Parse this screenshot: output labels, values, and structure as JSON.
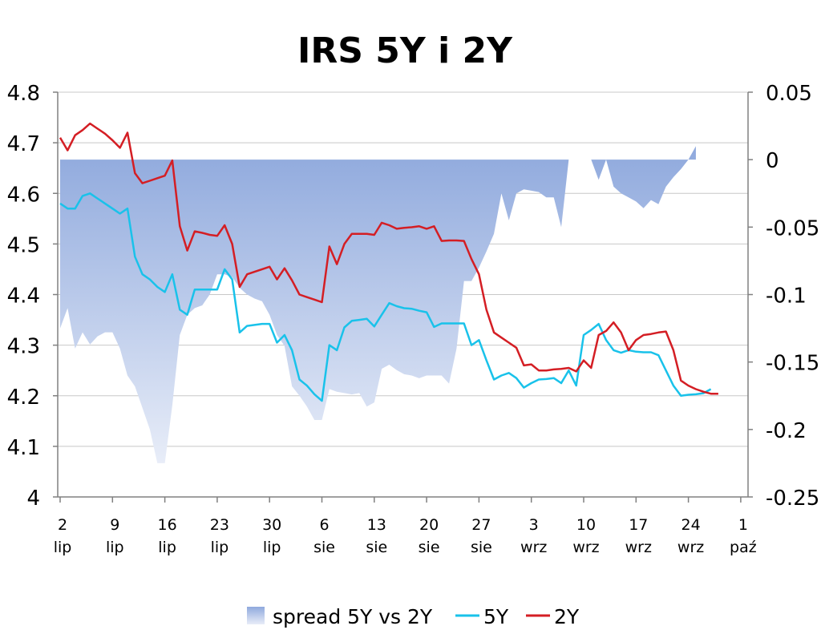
{
  "chart_data": {
    "type": "line",
    "title": "IRS 5Y i 2Y",
    "xlabel": "",
    "ylabel": "",
    "y_left": {
      "min": 4,
      "max": 4.8,
      "ticks": [
        "4",
        "4.1",
        "4.2",
        "4.3",
        "4.4",
        "4.5",
        "4.6",
        "4.7",
        "4.8"
      ]
    },
    "y_right": {
      "min": -0.25,
      "max": 0.05,
      "ticks": [
        "0.05",
        "0",
        "-0.05",
        "-0.1",
        "-0.15",
        "-0.2",
        "-0.25"
      ]
    },
    "x_ticks": [
      {
        "day": "2",
        "month": "lip"
      },
      {
        "day": "9",
        "month": "lip"
      },
      {
        "day": "16",
        "month": "lip"
      },
      {
        "day": "23",
        "month": "lip"
      },
      {
        "day": "30",
        "month": "lip"
      },
      {
        "day": "6",
        "month": "sie"
      },
      {
        "day": "13",
        "month": "sie"
      },
      {
        "day": "20",
        "month": "sie"
      },
      {
        "day": "27",
        "month": "sie"
      },
      {
        "day": "3",
        "month": "wrz"
      },
      {
        "day": "10",
        "month": "wrz"
      },
      {
        "day": "17",
        "month": "wrz"
      },
      {
        "day": "24",
        "month": "wrz"
      },
      {
        "day": "1",
        "month": "paź"
      }
    ],
    "grid": true,
    "legend_position": "bottom",
    "series": [
      {
        "name": "spread 5Y vs 2Y",
        "type": "area",
        "axis": "right",
        "color_top": "#8fa9dd",
        "color_bottom": "#e3e9f7",
        "values": [
          [
            0,
            -0.125
          ],
          [
            1,
            -0.11
          ],
          [
            2,
            -0.14
          ],
          [
            3,
            -0.128
          ],
          [
            4,
            -0.137
          ],
          [
            5,
            -0.131
          ],
          [
            6,
            -0.128
          ],
          [
            7,
            -0.128
          ],
          [
            8,
            -0.14
          ],
          [
            9,
            -0.16
          ],
          [
            10,
            -0.168
          ],
          [
            11,
            -0.184
          ],
          [
            12,
            -0.2
          ],
          [
            13,
            -0.225
          ],
          [
            14,
            -0.225
          ],
          [
            15,
            -0.182
          ],
          [
            16,
            -0.13
          ],
          [
            17,
            -0.115
          ],
          [
            18,
            -0.11
          ],
          [
            19,
            -0.108
          ],
          [
            20,
            -0.1
          ],
          [
            21,
            -0.085
          ],
          [
            22,
            -0.085
          ],
          [
            23,
            -0.087
          ],
          [
            24,
            -0.095
          ],
          [
            25,
            -0.1
          ],
          [
            26,
            -0.103
          ],
          [
            27,
            -0.105
          ],
          [
            28,
            -0.115
          ],
          [
            29,
            -0.13
          ],
          [
            30,
            -0.138
          ],
          [
            31,
            -0.168
          ],
          [
            32,
            -0.175
          ],
          [
            33,
            -0.183
          ],
          [
            34,
            -0.193
          ],
          [
            35,
            -0.193
          ],
          [
            36,
            -0.17
          ],
          [
            37,
            -0.172
          ],
          [
            38,
            -0.173
          ],
          [
            39,
            -0.174
          ],
          [
            40,
            -0.173
          ],
          [
            41,
            -0.183
          ],
          [
            42,
            -0.18
          ],
          [
            43,
            -0.155
          ],
          [
            44,
            -0.152
          ],
          [
            45,
            -0.156
          ],
          [
            46,
            -0.159
          ],
          [
            47,
            -0.16
          ],
          [
            48,
            -0.162
          ],
          [
            49,
            -0.16
          ],
          [
            50,
            -0.16
          ],
          [
            51,
            -0.16
          ],
          [
            52,
            -0.166
          ],
          [
            53,
            -0.14
          ],
          [
            54,
            -0.09
          ],
          [
            55,
            -0.09
          ],
          [
            56,
            -0.08
          ],
          [
            57,
            -0.068
          ],
          [
            58,
            -0.055
          ],
          [
            59,
            -0.025
          ],
          [
            60,
            -0.045
          ],
          [
            61,
            -0.025
          ],
          [
            62,
            -0.022
          ],
          [
            63,
            -0.023
          ],
          [
            64,
            -0.024
          ],
          [
            65,
            -0.028
          ],
          [
            66,
            -0.028
          ],
          [
            67,
            -0.05
          ],
          [
            68,
            0.0
          ],
          [
            69,
            0.0
          ],
          [
            70,
            0.0
          ],
          [
            71,
            0.0
          ],
          [
            72,
            -0.015
          ],
          [
            73,
            0.0
          ],
          [
            74,
            -0.02
          ],
          [
            75,
            -0.025
          ],
          [
            76,
            -0.028
          ],
          [
            77,
            -0.031
          ],
          [
            78,
            -0.036
          ],
          [
            79,
            -0.03
          ],
          [
            80,
            -0.033
          ],
          [
            81,
            -0.02
          ],
          [
            82,
            -0.013
          ],
          [
            83,
            -0.007
          ],
          [
            84,
            0.0
          ],
          [
            85,
            0.01
          ]
        ]
      },
      {
        "name": "5Y",
        "type": "line",
        "axis": "left",
        "color": "#19c2ea",
        "values": [
          [
            0,
            4.58
          ],
          [
            1,
            4.57
          ],
          [
            2,
            4.57
          ],
          [
            3,
            4.595
          ],
          [
            4,
            4.6
          ],
          [
            5,
            4.59
          ],
          [
            6,
            4.58
          ],
          [
            7,
            4.57
          ],
          [
            8,
            4.56
          ],
          [
            9,
            4.57
          ],
          [
            10,
            4.475
          ],
          [
            11,
            4.44
          ],
          [
            12,
            4.43
          ],
          [
            13,
            4.415
          ],
          [
            14,
            4.405
          ],
          [
            15,
            4.44
          ],
          [
            16,
            4.37
          ],
          [
            17,
            4.36
          ],
          [
            18,
            4.41
          ],
          [
            19,
            4.41
          ],
          [
            20,
            4.41
          ],
          [
            21,
            4.41
          ],
          [
            22,
            4.45
          ],
          [
            23,
            4.43
          ],
          [
            24,
            4.325
          ],
          [
            25,
            4.338
          ],
          [
            26,
            4.34
          ],
          [
            27,
            4.342
          ],
          [
            28,
            4.342
          ],
          [
            29,
            4.305
          ],
          [
            30,
            4.32
          ],
          [
            31,
            4.29
          ],
          [
            32,
            4.232
          ],
          [
            33,
            4.22
          ],
          [
            34,
            4.203
          ],
          [
            35,
            4.19
          ],
          [
            36,
            4.3
          ],
          [
            37,
            4.29
          ],
          [
            38,
            4.335
          ],
          [
            39,
            4.348
          ],
          [
            40,
            4.35
          ],
          [
            41,
            4.352
          ],
          [
            42,
            4.337
          ],
          [
            43,
            4.36
          ],
          [
            44,
            4.383
          ],
          [
            45,
            4.377
          ],
          [
            46,
            4.373
          ],
          [
            47,
            4.372
          ],
          [
            48,
            4.368
          ],
          [
            49,
            4.365
          ],
          [
            50,
            4.336
          ],
          [
            51,
            4.343
          ],
          [
            52,
            4.343
          ],
          [
            53,
            4.343
          ],
          [
            54,
            4.343
          ],
          [
            55,
            4.3
          ],
          [
            56,
            4.31
          ],
          [
            57,
            4.27
          ],
          [
            58,
            4.232
          ],
          [
            59,
            4.24
          ],
          [
            60,
            4.245
          ],
          [
            61,
            4.235
          ],
          [
            62,
            4.216
          ],
          [
            63,
            4.225
          ],
          [
            64,
            4.232
          ],
          [
            65,
            4.233
          ],
          [
            66,
            4.235
          ],
          [
            67,
            4.225
          ],
          [
            68,
            4.25
          ],
          [
            69,
            4.22
          ],
          [
            70,
            4.32
          ],
          [
            71,
            4.33
          ],
          [
            72,
            4.342
          ],
          [
            73,
            4.31
          ],
          [
            74,
            4.29
          ],
          [
            75,
            4.285
          ],
          [
            76,
            4.29
          ],
          [
            77,
            4.287
          ],
          [
            78,
            4.286
          ],
          [
            79,
            4.286
          ],
          [
            80,
            4.28
          ],
          [
            81,
            4.25
          ],
          [
            82,
            4.22
          ],
          [
            83,
            4.2
          ],
          [
            84,
            4.202
          ],
          [
            85,
            4.203
          ],
          [
            86,
            4.205
          ],
          [
            87,
            4.213
          ]
        ]
      },
      {
        "name": "2Y",
        "type": "line",
        "axis": "left",
        "color": "#d41e24",
        "values": [
          [
            0,
            4.71
          ],
          [
            1,
            4.685
          ],
          [
            2,
            4.715
          ],
          [
            3,
            4.725
          ],
          [
            4,
            4.738
          ],
          [
            5,
            4.728
          ],
          [
            6,
            4.718
          ],
          [
            7,
            4.705
          ],
          [
            8,
            4.69
          ],
          [
            9,
            4.72
          ],
          [
            10,
            4.64
          ],
          [
            11,
            4.62
          ],
          [
            12,
            4.625
          ],
          [
            13,
            4.63
          ],
          [
            14,
            4.635
          ],
          [
            15,
            4.665
          ],
          [
            16,
            4.535
          ],
          [
            17,
            4.487
          ],
          [
            18,
            4.525
          ],
          [
            19,
            4.522
          ],
          [
            20,
            4.518
          ],
          [
            21,
            4.516
          ],
          [
            22,
            4.537
          ],
          [
            23,
            4.5
          ],
          [
            24,
            4.415
          ],
          [
            25,
            4.44
          ],
          [
            26,
            4.445
          ],
          [
            27,
            4.45
          ],
          [
            28,
            4.455
          ],
          [
            29,
            4.43
          ],
          [
            30,
            4.452
          ],
          [
            31,
            4.428
          ],
          [
            32,
            4.4
          ],
          [
            33,
            4.395
          ],
          [
            34,
            4.39
          ],
          [
            35,
            4.385
          ],
          [
            36,
            4.495
          ],
          [
            37,
            4.46
          ],
          [
            38,
            4.5
          ],
          [
            39,
            4.52
          ],
          [
            40,
            4.52
          ],
          [
            41,
            4.52
          ],
          [
            42,
            4.518
          ],
          [
            43,
            4.542
          ],
          [
            44,
            4.537
          ],
          [
            45,
            4.53
          ],
          [
            46,
            4.532
          ],
          [
            47,
            4.533
          ],
          [
            48,
            4.535
          ],
          [
            49,
            4.53
          ],
          [
            50,
            4.535
          ],
          [
            51,
            4.506
          ],
          [
            52,
            4.507
          ],
          [
            53,
            4.507
          ],
          [
            54,
            4.506
          ],
          [
            55,
            4.47
          ],
          [
            56,
            4.44
          ],
          [
            57,
            4.37
          ],
          [
            58,
            4.325
          ],
          [
            59,
            4.315
          ],
          [
            60,
            4.305
          ],
          [
            61,
            4.295
          ],
          [
            62,
            4.26
          ],
          [
            63,
            4.262
          ],
          [
            64,
            4.25
          ],
          [
            65,
            4.25
          ],
          [
            66,
            4.252
          ],
          [
            67,
            4.253
          ],
          [
            68,
            4.255
          ],
          [
            69,
            4.248
          ],
          [
            70,
            4.27
          ],
          [
            71,
            4.255
          ],
          [
            72,
            4.32
          ],
          [
            73,
            4.328
          ],
          [
            74,
            4.345
          ],
          [
            75,
            4.325
          ],
          [
            76,
            4.29
          ],
          [
            77,
            4.31
          ],
          [
            78,
            4.32
          ],
          [
            79,
            4.322
          ],
          [
            80,
            4.325
          ],
          [
            81,
            4.327
          ],
          [
            82,
            4.29
          ],
          [
            83,
            4.23
          ],
          [
            84,
            4.22
          ],
          [
            85,
            4.213
          ],
          [
            86,
            4.208
          ],
          [
            87,
            4.204
          ],
          [
            88,
            4.204
          ]
        ]
      }
    ],
    "x_range": [
      0,
      88
    ],
    "x_tick_positions": [
      0,
      7,
      14,
      21,
      28,
      35,
      42,
      49,
      56,
      63,
      70,
      77,
      84,
      91
    ]
  }
}
